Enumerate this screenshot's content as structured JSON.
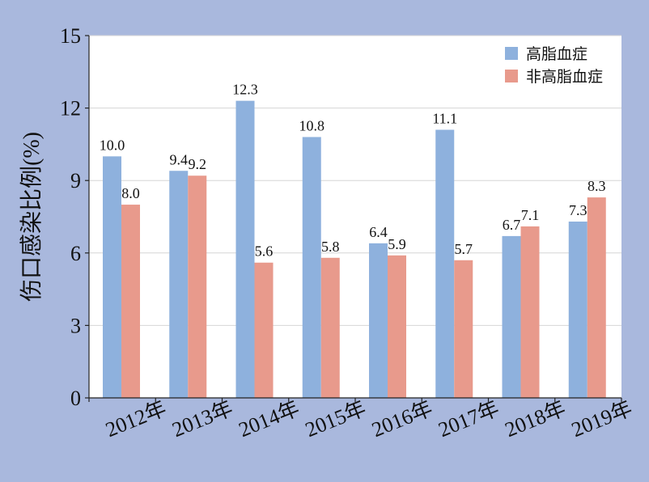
{
  "chart_data": {
    "type": "bar",
    "categories": [
      "2012年",
      "2013年",
      "2014年",
      "2015年",
      "2016年",
      "2017年",
      "2018年",
      "2019年"
    ],
    "series": [
      {
        "name": "高脂血症",
        "color": "#8eb1dd",
        "values": [
          10.0,
          9.4,
          12.3,
          10.8,
          6.4,
          11.1,
          6.7,
          7.3
        ]
      },
      {
        "name": "非高脂血症",
        "color": "#e89a8c",
        "values": [
          8.0,
          9.2,
          5.6,
          5.8,
          5.9,
          5.7,
          7.1,
          8.3
        ]
      }
    ],
    "ylabel": "伤口感染比例(%)",
    "xlabel": "",
    "ylim": [
      0,
      15
    ],
    "yticks": [
      0,
      3,
      6,
      9,
      12,
      15
    ],
    "grid": true,
    "legend_position": "top-right",
    "background": "#a9b8dd",
    "plot_background": "#ffffff"
  }
}
